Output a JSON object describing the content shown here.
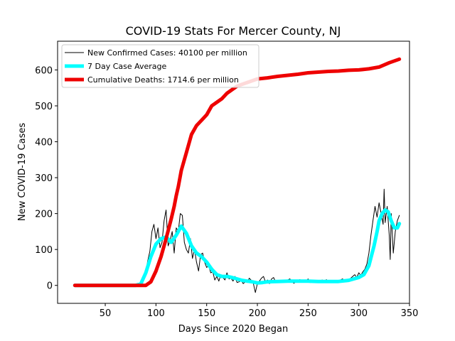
{
  "chart_data": {
    "type": "line",
    "title": "COVID-19 Stats For Mercer County, NJ",
    "xlabel": "Days Since 2020 Began",
    "ylabel": "New COVID-19 Cases",
    "xlim": [
      3,
      350
    ],
    "ylim": [
      -50,
      680
    ],
    "xticks": [
      50,
      100,
      150,
      200,
      250,
      300,
      350
    ],
    "yticks": [
      0,
      100,
      200,
      300,
      400,
      500,
      600
    ],
    "legend": {
      "position": "top-left",
      "entries": [
        "New Confirmed Cases: 40100 per million",
        "7 Day Case Average",
        "Cumulative Deaths: 1714.6 per million"
      ]
    },
    "series": [
      {
        "name": "New Confirmed Cases: 40100 per million",
        "color": "#000000",
        "x": [
          20,
          80,
          83,
          86,
          88,
          90,
          92,
          94,
          96,
          98,
          100,
          102,
          104,
          106,
          108,
          110,
          112,
          114,
          116,
          118,
          120,
          122,
          124,
          126,
          128,
          130,
          132,
          134,
          136,
          138,
          140,
          142,
          144,
          146,
          148,
          150,
          152,
          154,
          156,
          158,
          160,
          162,
          164,
          166,
          168,
          170,
          172,
          174,
          176,
          178,
          180,
          182,
          184,
          186,
          188,
          190,
          192,
          194,
          196,
          198,
          200,
          202,
          204,
          206,
          208,
          210,
          212,
          214,
          216,
          218,
          220,
          222,
          224,
          226,
          228,
          230,
          232,
          234,
          236,
          238,
          240,
          242,
          244,
          246,
          248,
          250,
          252,
          254,
          256,
          258,
          260,
          262,
          264,
          266,
          268,
          270,
          272,
          274,
          276,
          278,
          280,
          282,
          284,
          286,
          288,
          290,
          292,
          294,
          296,
          298,
          300,
          302,
          304,
          306,
          308,
          310,
          312,
          314,
          316,
          318,
          320,
          322,
          324,
          325,
          326,
          328,
          330,
          331,
          332,
          334,
          336,
          338,
          340
        ],
        "values": [
          0,
          0,
          3,
          10,
          25,
          40,
          70,
          95,
          150,
          170,
          130,
          160,
          105,
          120,
          180,
          210,
          110,
          125,
          150,
          90,
          160,
          150,
          200,
          195,
          120,
          100,
          90,
          130,
          75,
          100,
          65,
          40,
          85,
          90,
          65,
          50,
          55,
          35,
          38,
          15,
          25,
          12,
          30,
          22,
          15,
          35,
          18,
          20,
          12,
          25,
          8,
          10,
          15,
          5,
          10,
          8,
          20,
          14,
          6,
          -20,
          5,
          12,
          20,
          25,
          10,
          15,
          5,
          18,
          22,
          10,
          14,
          8,
          10,
          12,
          9,
          15,
          18,
          11,
          6,
          10,
          13,
          16,
          9,
          12,
          10,
          18,
          8,
          14,
          10,
          12,
          9,
          13,
          15,
          8,
          16,
          10,
          11,
          14,
          12,
          10,
          13,
          15,
          18,
          12,
          10,
          16,
          20,
          25,
          30,
          22,
          35,
          28,
          38,
          45,
          60,
          90,
          140,
          180,
          220,
          190,
          230,
          200,
          170,
          268,
          175,
          220,
          140,
          72,
          200,
          90,
          150,
          180,
          195
        ]
      },
      {
        "name": "7 Day Case Average",
        "color": "#00ffff",
        "x": [
          20,
          80,
          85,
          90,
          95,
          100,
          105,
          110,
          115,
          120,
          125,
          130,
          135,
          140,
          145,
          150,
          155,
          160,
          165,
          170,
          175,
          180,
          185,
          190,
          195,
          200,
          205,
          210,
          220,
          230,
          240,
          250,
          260,
          270,
          280,
          290,
          295,
          300,
          305,
          310,
          315,
          318,
          320,
          323,
          326,
          329,
          332,
          335,
          338,
          340
        ],
        "values": [
          0,
          0,
          4,
          35,
          80,
          115,
          130,
          135,
          120,
          140,
          165,
          145,
          110,
          90,
          80,
          65,
          45,
          30,
          25,
          25,
          22,
          18,
          14,
          12,
          10,
          7,
          8,
          10,
          11,
          12,
          12,
          12,
          11,
          11,
          11,
          14,
          18,
          22,
          30,
          55,
          110,
          150,
          180,
          200,
          210,
          205,
          180,
          160,
          160,
          172
        ]
      },
      {
        "name": "Cumulative Deaths: 1714.6 per million",
        "color": "#ee0000",
        "x": [
          20,
          80,
          90,
          95,
          100,
          105,
          110,
          115,
          118,
          120,
          122,
          125,
          130,
          135,
          140,
          145,
          150,
          155,
          160,
          165,
          170,
          180,
          190,
          200,
          210,
          220,
          230,
          240,
          250,
          260,
          270,
          280,
          290,
          300,
          310,
          320,
          330,
          340
        ],
        "values": [
          0,
          0,
          0,
          10,
          40,
          80,
          130,
          185,
          220,
          250,
          275,
          320,
          370,
          420,
          445,
          460,
          475,
          500,
          510,
          520,
          535,
          555,
          565,
          575,
          578,
          582,
          585,
          588,
          592,
          594,
          596,
          597,
          599,
          600,
          603,
          608,
          620,
          630
        ]
      }
    ]
  }
}
